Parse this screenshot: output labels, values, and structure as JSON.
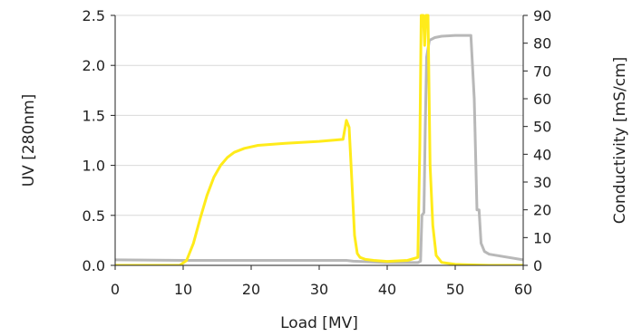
{
  "chart_data": {
    "type": "line",
    "xlabel": "Load [MV]",
    "ylabel_left": "UV [280nm]",
    "ylabel_right": "Conductivity [mS/cm]",
    "xlim": [
      0,
      60
    ],
    "ylim_left": [
      0,
      2.5
    ],
    "ylim_right": [
      0,
      90
    ],
    "x_ticks": [
      "0",
      "10",
      "20",
      "30",
      "40",
      "50",
      "60"
    ],
    "y_left_ticks": [
      "0.0",
      "0.5",
      "1.0",
      "1.5",
      "2.0",
      "2.5"
    ],
    "y_right_ticks": [
      "0",
      "10",
      "20",
      "30",
      "40",
      "50",
      "60",
      "70",
      "80",
      "90"
    ],
    "grid": true,
    "series": [
      {
        "axis": "left",
        "color": "#ffeb1a",
        "x": [
          0,
          9.5,
          10.5,
          11.5,
          12.5,
          13.5,
          14.5,
          15.5,
          16.5,
          17.5,
          19,
          21,
          25,
          30,
          33.5,
          34.0,
          34.4,
          34.8,
          35.2,
          35.6,
          36.0,
          36.8,
          38,
          40,
          43,
          44.5,
          44.8,
          45.0,
          45.3,
          45.5,
          45.7,
          46.0,
          46.3,
          46.7,
          47.2,
          48,
          50,
          55,
          60
        ],
        "y": [
          0.0,
          0.0,
          0.05,
          0.22,
          0.47,
          0.7,
          0.88,
          1.0,
          1.08,
          1.13,
          1.17,
          1.2,
          1.22,
          1.24,
          1.26,
          1.45,
          1.38,
          0.85,
          0.3,
          0.12,
          0.08,
          0.06,
          0.05,
          0.04,
          0.05,
          0.08,
          1.2,
          2.5,
          2.5,
          2.2,
          2.5,
          2.5,
          1.0,
          0.4,
          0.1,
          0.03,
          0.01,
          0.0,
          0.0
        ]
      },
      {
        "axis": "right",
        "color": "#b8b8b8",
        "x": [
          0,
          10,
          20,
          30,
          34,
          35,
          40,
          44.5,
          44.9,
          45.1,
          45.4,
          45.6,
          45.8,
          46.2,
          47,
          48,
          50,
          52.3,
          52.8,
          53.2,
          53.5,
          53.8,
          54.3,
          55,
          60
        ],
        "y": [
          2,
          1.8,
          1.8,
          1.8,
          1.8,
          1.5,
          1.0,
          1.0,
          1.5,
          18,
          19,
          50,
          75,
          81,
          82,
          82.5,
          82.8,
          82.8,
          60,
          20,
          20,
          8,
          5,
          4,
          2
        ]
      }
    ]
  }
}
